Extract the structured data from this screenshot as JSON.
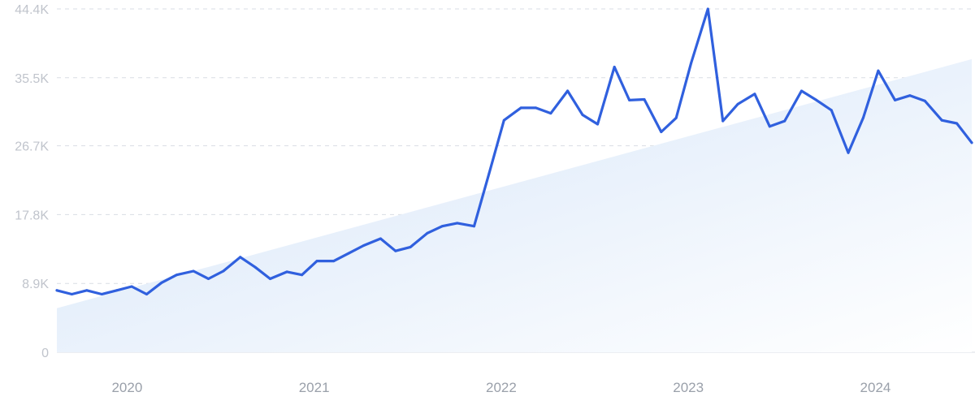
{
  "chart_data": {
    "type": "line",
    "title": "",
    "xlabel": "",
    "ylabel": "",
    "y_ticks": [
      "0",
      "8.9K",
      "17.8K",
      "26.7K",
      "35.5K",
      "44.4K"
    ],
    "y_tick_values": [
      0,
      8900,
      17800,
      26700,
      35500,
      44400
    ],
    "ylim": [
      0,
      44400
    ],
    "x_ticks": [
      "2020",
      "2021",
      "2022",
      "2023",
      "2024"
    ],
    "x_tick_values": [
      2020.0,
      2021.0,
      2022.0,
      2023.0,
      2024.0
    ],
    "xlim": [
      2019.69,
      2024.58
    ],
    "grid": true,
    "trend": {
      "start": [
        2019.69,
        5700
      ],
      "end": [
        2024.58,
        37900
      ]
    },
    "colors": {
      "line": "#3060de",
      "trend_fill_top": "#d4e4f8",
      "trend_fill_bottom": "#ffffff"
    },
    "series": [
      {
        "x": [
          2019.69,
          2019.77,
          2019.85,
          2019.93,
          2020.01,
          2020.09,
          2020.17,
          2020.25,
          2020.33,
          2020.42,
          2020.5,
          2020.58,
          2020.67,
          2020.75,
          2020.83,
          2020.92,
          2021.0,
          2021.08,
          2021.17,
          2021.25,
          2021.33,
          2021.42,
          2021.5,
          2021.58,
          2021.67,
          2021.75,
          2021.83,
          2021.92,
          2022.0,
          2022.08,
          2022.17,
          2022.25,
          2022.33,
          2022.42,
          2022.5,
          2022.58,
          2022.67,
          2022.75,
          2022.83,
          2022.92,
          2023.0,
          2023.08,
          2023.17,
          2023.25,
          2023.33,
          2023.42,
          2023.5,
          2023.58,
          2023.67,
          2023.75,
          2023.83,
          2023.92,
          2024.0,
          2024.08,
          2024.17,
          2024.25,
          2024.33,
          2024.42,
          2024.5,
          2024.58
        ],
        "y": [
          8000,
          7500,
          8000,
          7500,
          8000,
          8500,
          7500,
          9000,
          10000,
          10500,
          9500,
          10500,
          12300,
          11000,
          9500,
          10400,
          10000,
          11800,
          11800,
          12800,
          13800,
          14700,
          13100,
          13600,
          15400,
          16300,
          16700,
          16300,
          23100,
          30000,
          31600,
          31600,
          30900,
          33800,
          30700,
          29500,
          36900,
          32600,
          32700,
          28500,
          30300,
          37400,
          44400,
          29900,
          32100,
          33400,
          29200,
          29900,
          33800,
          32600,
          31300,
          25800,
          30300,
          36400,
          32600,
          33200,
          32500,
          30000,
          29600,
          27100
        ]
      }
    ]
  }
}
